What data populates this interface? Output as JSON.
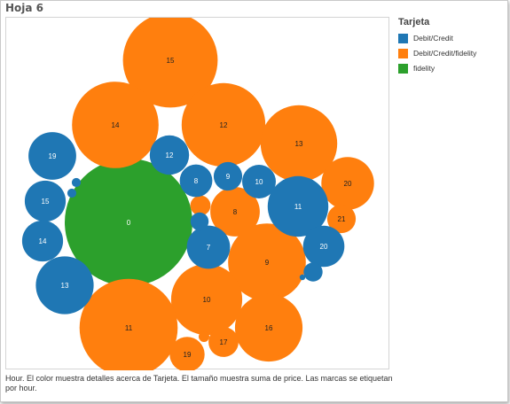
{
  "sheet_title": "Hoja 6",
  "legend": {
    "title": "Tarjeta",
    "items": [
      {
        "label": "Debit/Credit",
        "color": "#1f77b4"
      },
      {
        "label": "Debit/Credit/fidelity",
        "color": "#ff7f0e"
      },
      {
        "label": "fidelity",
        "color": "#2ca02c"
      }
    ]
  },
  "caption": "Hour.  El color muestra detalles acerca de Tarjeta.  El tamaño muestra suma de price.  Las marcas se etiquetan por hour.",
  "chart_data": {
    "type": "packed-bubble",
    "color_field": "Tarjeta",
    "size_field": "suma de price",
    "label_field": "hour",
    "series": [
      {
        "name": "fidelity",
        "color": "#2ca02c",
        "points": [
          {
            "label": "0",
            "hour": 0,
            "value": 100
          }
        ]
      },
      {
        "name": "Debit/Credit/fidelity",
        "color": "#ff7f0e",
        "points": [
          {
            "label": "15",
            "hour": 15,
            "value": 55
          },
          {
            "label": "14",
            "hour": 14,
            "value": 46
          },
          {
            "label": "12",
            "hour": 12,
            "value": 43
          },
          {
            "label": "13",
            "hour": 13,
            "value": 36
          },
          {
            "label": "20",
            "hour": 20,
            "value": 17
          },
          {
            "label": "8",
            "hour": 8,
            "value": 15
          },
          {
            "label": "21",
            "hour": 21,
            "value": 5
          },
          {
            "label": "9",
            "hour": 9,
            "value": 37
          },
          {
            "label": "10",
            "hour": 10,
            "value": 31
          },
          {
            "label": "11",
            "hour": 11,
            "value": 59
          },
          {
            "label": "16",
            "hour": 16,
            "value": 28
          },
          {
            "label": "17",
            "hour": 17,
            "value": 5.5
          },
          {
            "label": "19",
            "hour": 19,
            "value": 7.5
          },
          {
            "label": "",
            "value": 2.5
          },
          {
            "label": "",
            "value": 0.7
          }
        ]
      },
      {
        "name": "Debit/Credit",
        "color": "#1f77b4",
        "points": [
          {
            "label": "19",
            "hour": 19,
            "value": 14
          },
          {
            "label": "12",
            "hour": 12,
            "value": 9.5
          },
          {
            "label": "9",
            "hour": 9,
            "value": 5
          },
          {
            "label": "8",
            "hour": 8,
            "value": 6.5
          },
          {
            "label": "10",
            "hour": 10,
            "value": 7
          },
          {
            "label": "15",
            "hour": 15,
            "value": 10.3
          },
          {
            "label": "14",
            "hour": 14,
            "value": 10.3
          },
          {
            "label": "11",
            "hour": 11,
            "value": 22.5
          },
          {
            "label": "7",
            "hour": 7,
            "value": 11.5
          },
          {
            "label": "20",
            "hour": 20,
            "value": 10.5
          },
          {
            "label": "13",
            "hour": 13,
            "value": 20.5
          },
          {
            "label": "",
            "value": 2
          },
          {
            "label": "",
            "value": 2.2
          },
          {
            "label": "",
            "value": 0.5
          },
          {
            "label": "",
            "value": 0.5
          },
          {
            "label": "",
            "value": 0.2
          }
        ]
      }
    ]
  }
}
